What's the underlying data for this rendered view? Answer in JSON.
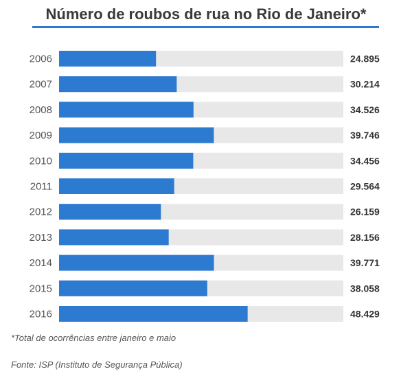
{
  "chart_data": {
    "type": "bar",
    "orientation": "horizontal",
    "title": "Número de roubos de rua no Rio de Janeiro*",
    "categories": [
      "2006",
      "2007",
      "2008",
      "2009",
      "2010",
      "2011",
      "2012",
      "2013",
      "2014",
      "2015",
      "2016"
    ],
    "values": [
      24895,
      30214,
      34526,
      39746,
      34456,
      29564,
      26159,
      28156,
      39771,
      38058,
      48429
    ],
    "value_labels": [
      "24.895",
      "30.214",
      "34.526",
      "39.746",
      "34.456",
      "29.564",
      "26.159",
      "28.156",
      "39.771",
      "38.058",
      "48.429"
    ],
    "xlim": [
      0,
      73000
    ],
    "grid": false,
    "colors": {
      "bar": "#2c7bd0",
      "track": "#e8e8e8",
      "title_rule": "#2c7bd0"
    }
  },
  "footnote": "*Total de ocorrências entre janeiro e maio",
  "source": "Fonte: ISP (Instituto de Segurança Pública)"
}
